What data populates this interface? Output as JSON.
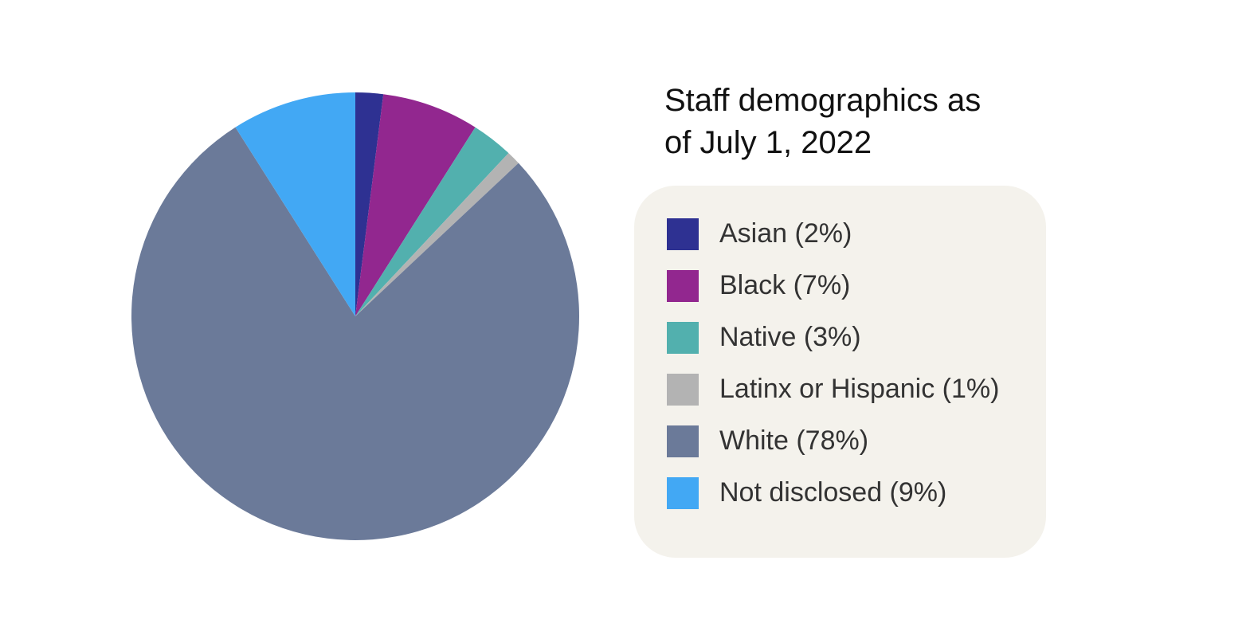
{
  "chart_data": {
    "type": "pie",
    "title": "Staff demographics as of July 1, 2022",
    "categories": [
      "Asian (2%)",
      "Black (7%)",
      "Native (3%)",
      "Latinx or Hispanic (1%)",
      "White (78%)",
      "Not disclosed (9%)"
    ],
    "values": [
      2,
      7,
      3,
      1,
      78,
      9
    ],
    "colors": [
      "#2e3192",
      "#92278f",
      "#52b0ae",
      "#b3b3b3",
      "#6b7a99",
      "#42a8f4"
    ]
  }
}
